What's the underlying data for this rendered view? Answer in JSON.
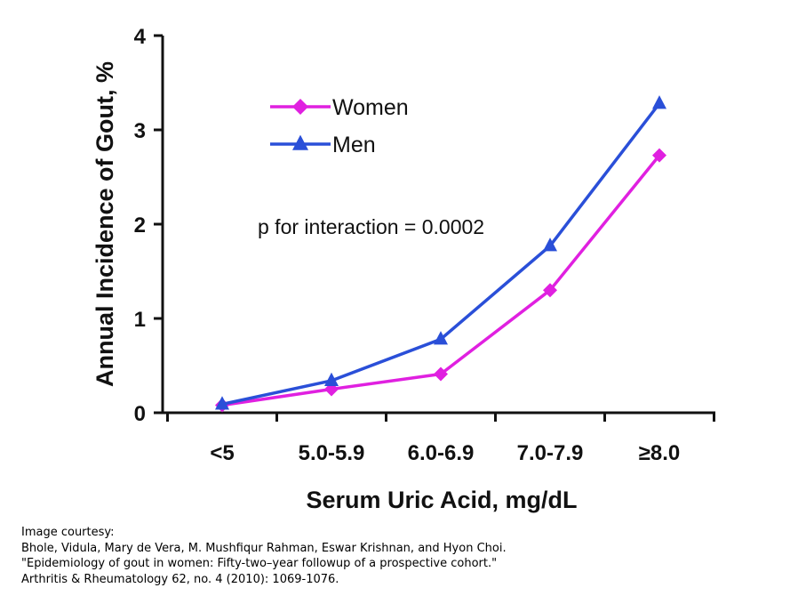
{
  "chart_data": {
    "type": "line",
    "categories": [
      "<5",
      "5.0-5.9",
      "6.0-6.9",
      "7.0-7.9",
      "≥8.0"
    ],
    "series": [
      {
        "name": "Women",
        "values": [
          0.08,
          0.25,
          0.41,
          1.3,
          2.73
        ],
        "color": "#e020e0",
        "marker": "diamond"
      },
      {
        "name": "Men",
        "values": [
          0.09,
          0.34,
          0.78,
          1.77,
          3.28
        ],
        "color": "#2a4fd8",
        "marker": "triangle"
      }
    ],
    "xlabel": "Serum Uric Acid, mg/dL",
    "ylabel": "Annual Incidence of Gout, %",
    "ylim": [
      0,
      4
    ],
    "yticks": [
      0,
      1,
      2,
      3,
      4
    ],
    "annotation": "p for interaction = 0.0002",
    "legend_position": "top-left",
    "grid": false
  },
  "credit": {
    "lines": [
      "Image courtesy:",
      "Bhole, Vidula, Mary de Vera, M. Mushfiqur Rahman, Eswar Krishnan, and Hyon Choi.",
      "\"Epidemiology of gout in women: Fifty-two–year followup of a prospective cohort.\"",
      "Arthritis & Rheumatology 62, no. 4 (2010): 1069-1076."
    ]
  }
}
